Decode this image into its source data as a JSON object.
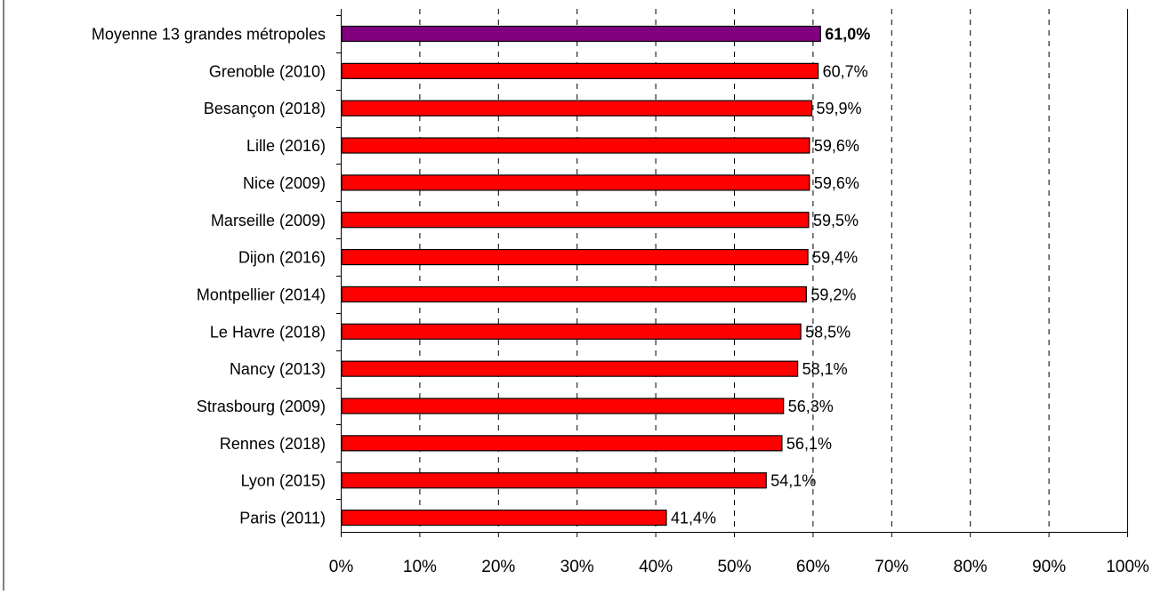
{
  "chart_data": {
    "type": "bar",
    "orientation": "horizontal",
    "categories": [
      "Moyenne 13 grandes métropoles",
      "Grenoble (2010)",
      "Besançon (2018)",
      "Lille (2016)",
      "Nice (2009)",
      "Marseille (2009)",
      "Dijon (2016)",
      "Montpellier (2014)",
      "Le Havre (2018)",
      "Nancy (2013)",
      "Strasbourg (2009)",
      "Rennes (2018)",
      "Lyon (2015)",
      "Paris (2011)"
    ],
    "values": [
      61.0,
      60.7,
      59.9,
      59.6,
      59.6,
      59.5,
      59.4,
      59.2,
      58.5,
      58.1,
      56.3,
      56.1,
      54.1,
      41.4
    ],
    "data_labels": [
      "61,0%",
      "60,7%",
      "59,9%",
      "59,6%",
      "59,6%",
      "59,5%",
      "59,4%",
      "59,2%",
      "58,5%",
      "58,1%",
      "56,3%",
      "56,1%",
      "54,1%",
      "41,4%"
    ],
    "xlim": [
      0,
      100
    ],
    "x_ticks": [
      0,
      10,
      20,
      30,
      40,
      50,
      60,
      70,
      80,
      90,
      100
    ],
    "x_tick_labels": [
      "0%",
      "10%",
      "20%",
      "30%",
      "40%",
      "50%",
      "60%",
      "70%",
      "80%",
      "90%",
      "100%"
    ],
    "highlight_index": 0,
    "colors": {
      "highlight": "#800080",
      "bar": "#ff0000",
      "bar_outline": "#000000",
      "grid": "#000000"
    },
    "grid": "vertical dashed",
    "title": "",
    "xlabel": "",
    "ylabel": ""
  }
}
